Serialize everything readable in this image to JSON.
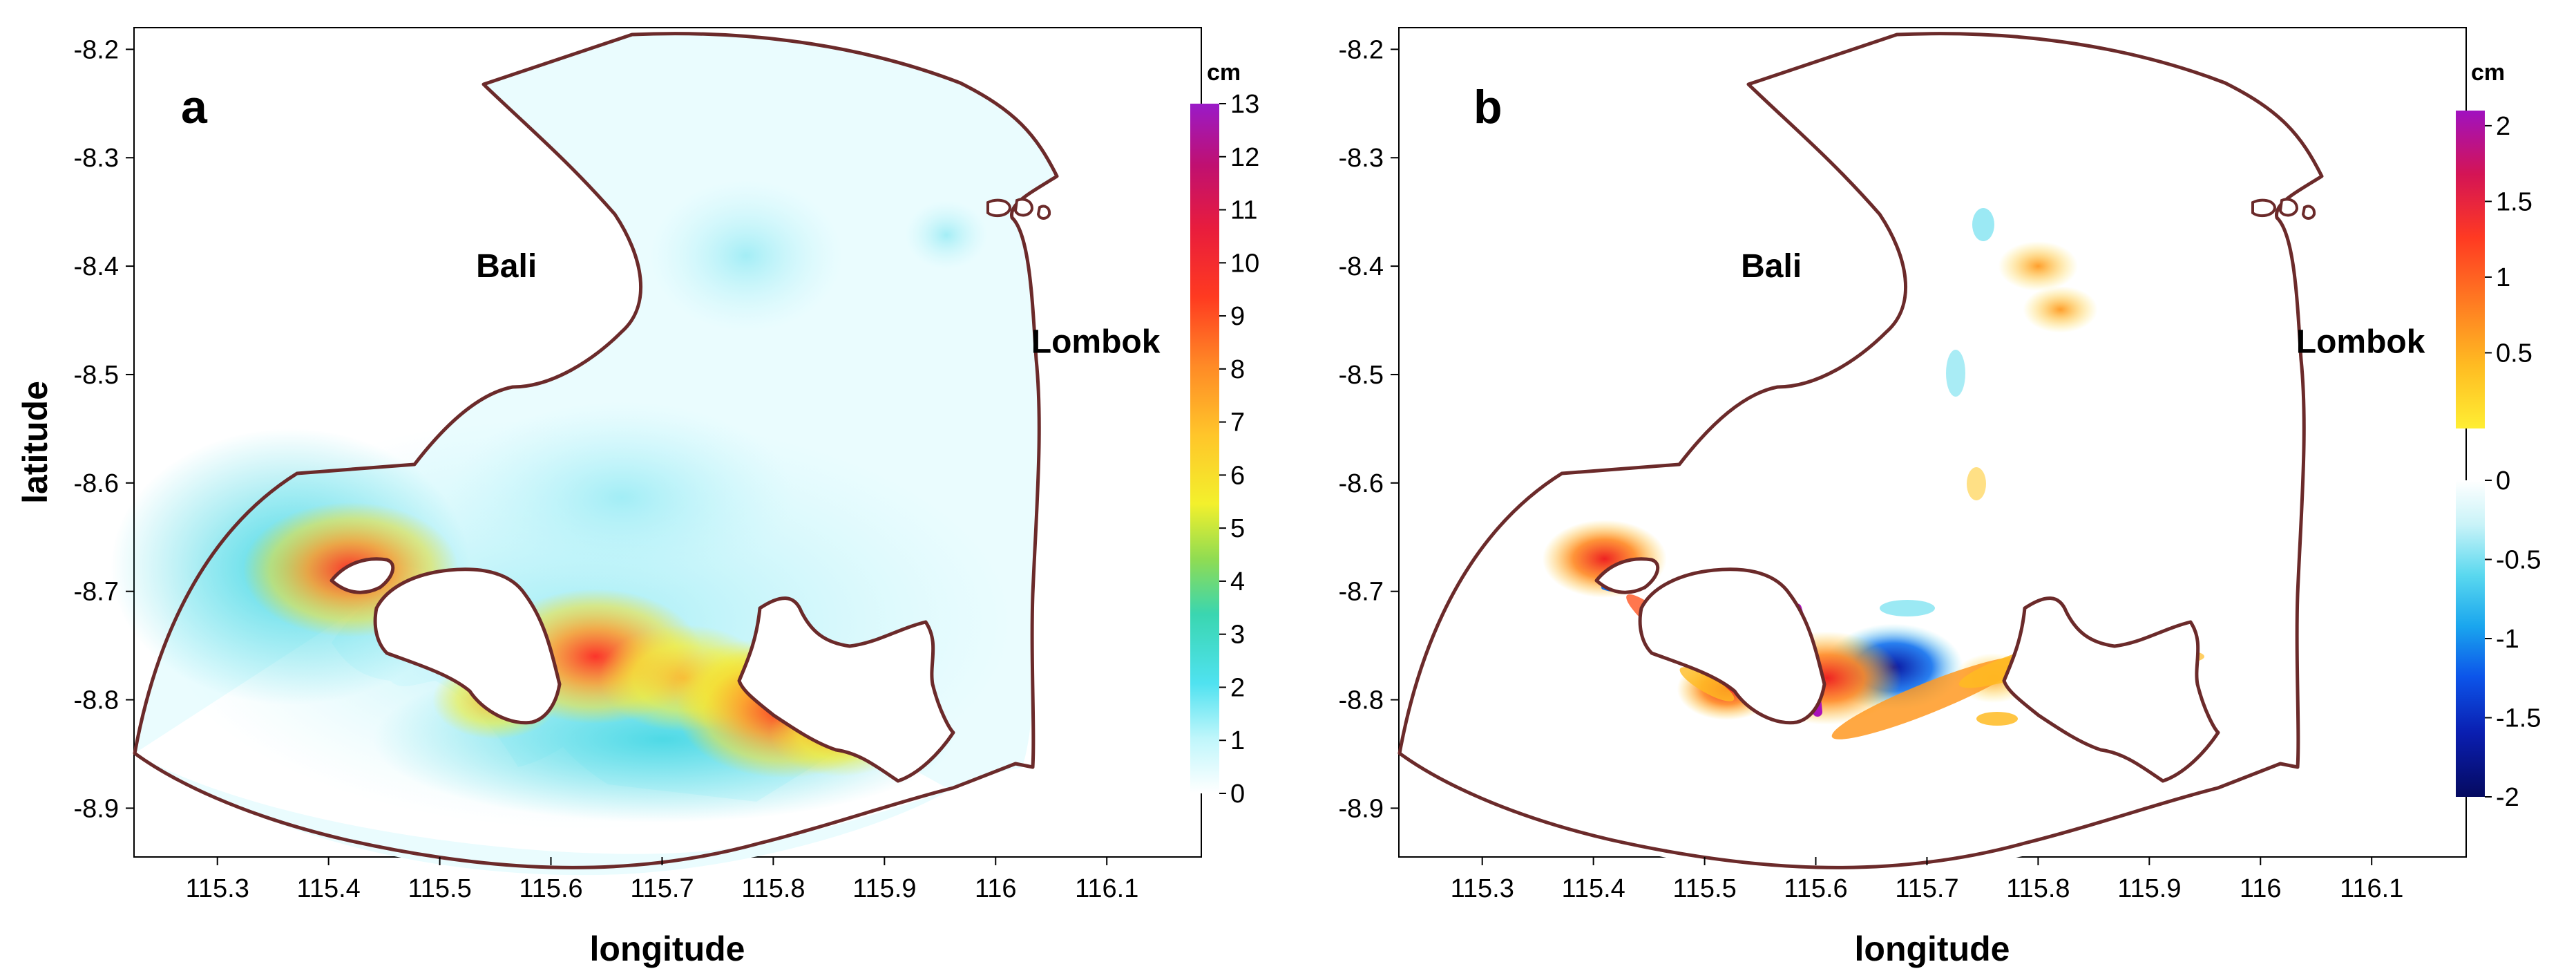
{
  "chart_data": [
    {
      "type": "heatmap",
      "panel": "a",
      "xlabel": "longitude",
      "ylabel": "latitude",
      "xlim": [
        115.225,
        116.185
      ],
      "ylim": [
        -8.945,
        -8.18
      ],
      "x_ticks": [
        115.3,
        115.4,
        115.5,
        115.6,
        115.7,
        115.8,
        115.9,
        116,
        116.1
      ],
      "x_tick_labels": [
        "115.3",
        "115.4",
        "115.5",
        "115.6",
        "115.7",
        "115.8",
        "115.9",
        "116",
        "116.1"
      ],
      "y_ticks": [
        -8.2,
        -8.3,
        -8.4,
        -8.5,
        -8.6,
        -8.7,
        -8.8,
        -8.9
      ],
      "y_tick_labels": [
        "-8.2",
        "-8.3",
        "-8.4",
        "-8.5",
        "-8.6",
        "-8.7",
        "-8.8",
        "-8.9"
      ],
      "labels": [
        {
          "text": "Bali",
          "lon": 115.56,
          "lat": -8.41
        },
        {
          "text": "Lombok",
          "lon": 116.09,
          "lat": -8.48
        }
      ],
      "colorbar": {
        "unit": "cm",
        "range": [
          0,
          13
        ],
        "ticks": [
          0,
          1,
          2,
          3,
          4,
          5,
          6,
          7,
          8,
          9,
          10,
          11,
          12,
          13
        ],
        "tick_labels": [
          "0",
          "1",
          "2",
          "3",
          "4",
          "5",
          "6",
          "7",
          "8",
          "9",
          "10",
          "11",
          "12",
          "13"
        ],
        "colors": [
          "#ffffff",
          "#bff6fb",
          "#62e8f4",
          "#2ed3d9",
          "#52d68a",
          "#b7e243",
          "#f6f02c",
          "#ffc82a",
          "#ff9a2a",
          "#ff6a24",
          "#ff3020",
          "#e81c3d",
          "#c01070",
          "#9a1ac8"
        ]
      },
      "hotspots": [
        {
          "lon": 115.42,
          "lat": -8.68,
          "value": 10
        },
        {
          "lon": 115.64,
          "lat": -8.76,
          "value": 10
        },
        {
          "lon": 115.72,
          "lat": -8.78,
          "value": 7
        },
        {
          "lon": 115.78,
          "lat": -8.79,
          "value": 6
        },
        {
          "lon": 115.81,
          "lat": -8.81,
          "value": 10
        },
        {
          "lon": 115.86,
          "lat": -8.83,
          "value": 5
        },
        {
          "lon": 115.55,
          "lat": -8.8,
          "value": 4
        }
      ]
    },
    {
      "type": "heatmap",
      "panel": "b",
      "xlabel": "longitude",
      "ylabel": "",
      "xlim": [
        115.225,
        116.185
      ],
      "ylim": [
        -8.945,
        -8.18
      ],
      "x_ticks": [
        115.3,
        115.4,
        115.5,
        115.6,
        115.7,
        115.8,
        115.9,
        116,
        116.1
      ],
      "x_tick_labels": [
        "115.3",
        "115.4",
        "115.5",
        "115.6",
        "115.7",
        "115.8",
        "115.9",
        "116",
        "116.1"
      ],
      "y_ticks": [
        -8.2,
        -8.3,
        -8.4,
        -8.5,
        -8.6,
        -8.7,
        -8.8,
        -8.9
      ],
      "y_tick_labels": [
        "-8.2",
        "-8.3",
        "-8.4",
        "-8.5",
        "-8.6",
        "-8.7",
        "-8.8",
        "-8.9"
      ],
      "labels": [
        {
          "text": "Bali",
          "lon": 115.56,
          "lat": -8.41
        },
        {
          "text": "Lombok",
          "lon": 116.09,
          "lat": -8.48
        }
      ],
      "colorbar": {
        "unit": "cm",
        "range": [
          -2,
          2.1
        ],
        "ticks": [
          2,
          1.5,
          1,
          0.5,
          0,
          -0.5,
          -1,
          -1.5,
          -2
        ],
        "tick_labels": [
          "2",
          "1.5",
          "1",
          "0.5",
          "0",
          "-0.5",
          "-1",
          "-1.5",
          "-2"
        ],
        "positive_colors": [
          "#ffee33",
          "#ffbb22",
          "#ff8822",
          "#ff5522",
          "#ee2222",
          "#cc1166",
          "#aa11bb"
        ],
        "negative_colors": [
          "#cdf3f7",
          "#70e0ef",
          "#23b9ee",
          "#1070ee",
          "#0a2fe0",
          "#0a15a0",
          "#050a66"
        ]
      },
      "hotspots": [
        {
          "lon": 115.41,
          "lat": -8.67,
          "value": 1.5
        },
        {
          "lon": 115.67,
          "lat": -8.77,
          "value": -1.8
        },
        {
          "lon": 115.8,
          "lat": -8.4,
          "value": 0.6
        },
        {
          "lon": 115.82,
          "lat": -8.44,
          "value": 0.5
        },
        {
          "lon": 115.76,
          "lat": -8.78,
          "value": 0.6
        },
        {
          "lon": 115.61,
          "lat": -8.78,
          "value": 2.0
        },
        {
          "lon": 115.52,
          "lat": -8.79,
          "value": 1.0
        }
      ]
    }
  ]
}
